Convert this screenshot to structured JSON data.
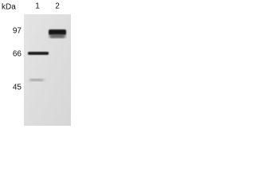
{
  "header": {
    "unit": "kDa"
  },
  "lanes": [
    "1",
    "2"
  ],
  "markers": [
    "97",
    "66",
    "45"
  ]
}
